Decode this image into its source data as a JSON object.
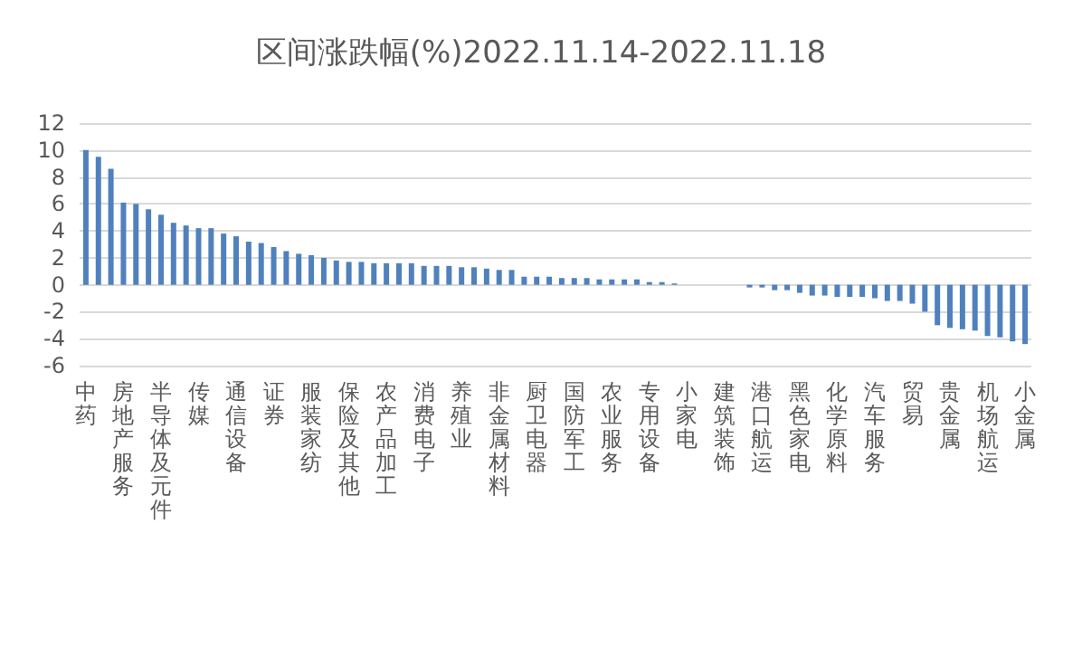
{
  "chart_data": {
    "type": "bar",
    "title": "区间涨跌幅(%)2022.11.14-2022.11.18",
    "categories": [
      "中药",
      null,
      null,
      "房地产服务",
      null,
      null,
      "半导体及元件",
      null,
      null,
      "传媒",
      null,
      null,
      "通信设备",
      null,
      null,
      "证券",
      null,
      null,
      "服装家纺",
      null,
      null,
      "保险及其他",
      null,
      null,
      "农产品加工",
      null,
      null,
      "消费电子",
      null,
      null,
      "养殖业",
      null,
      null,
      "非金属材料",
      null,
      null,
      "厨卫电器",
      null,
      null,
      "国防军工",
      null,
      null,
      "农业服务",
      null,
      null,
      "专用设备",
      null,
      null,
      "小家电",
      null,
      null,
      "建筑装饰",
      null,
      null,
      "港口航运",
      null,
      null,
      "黑色家电",
      null,
      null,
      "化学原料",
      null,
      null,
      "汽车服务",
      null,
      null,
      "贸易",
      null,
      null,
      "贵金属",
      null,
      null,
      "机场航运",
      null,
      null,
      "小金属"
    ],
    "values": [
      10.0,
      9.5,
      8.6,
      6.1,
      6.0,
      5.6,
      5.2,
      4.6,
      4.4,
      4.2,
      4.2,
      3.8,
      3.6,
      3.2,
      3.1,
      2.8,
      2.5,
      2.3,
      2.2,
      2.0,
      1.8,
      1.7,
      1.7,
      1.6,
      1.6,
      1.6,
      1.6,
      1.4,
      1.4,
      1.4,
      1.3,
      1.3,
      1.2,
      1.1,
      1.1,
      0.6,
      0.6,
      0.6,
      0.5,
      0.5,
      0.5,
      0.4,
      0.4,
      0.4,
      0.4,
      0.2,
      0.2,
      0.1,
      0,
      0,
      0,
      0,
      0,
      -0.2,
      -0.2,
      -0.4,
      -0.4,
      -0.6,
      -0.8,
      -0.8,
      -0.9,
      -0.9,
      -0.9,
      -1.0,
      -1.2,
      -1.2,
      -1.4,
      -2.0,
      -3.0,
      -3.2,
      -3.3,
      -3.4,
      -3.8,
      -3.9,
      -4.2,
      -4.4
    ],
    "color": "#4f81bd",
    "ylim": [
      -6,
      12
    ],
    "yticks": [
      -6,
      -4,
      -2,
      0,
      2,
      4,
      6,
      8,
      10,
      12
    ],
    "grid": "y"
  }
}
